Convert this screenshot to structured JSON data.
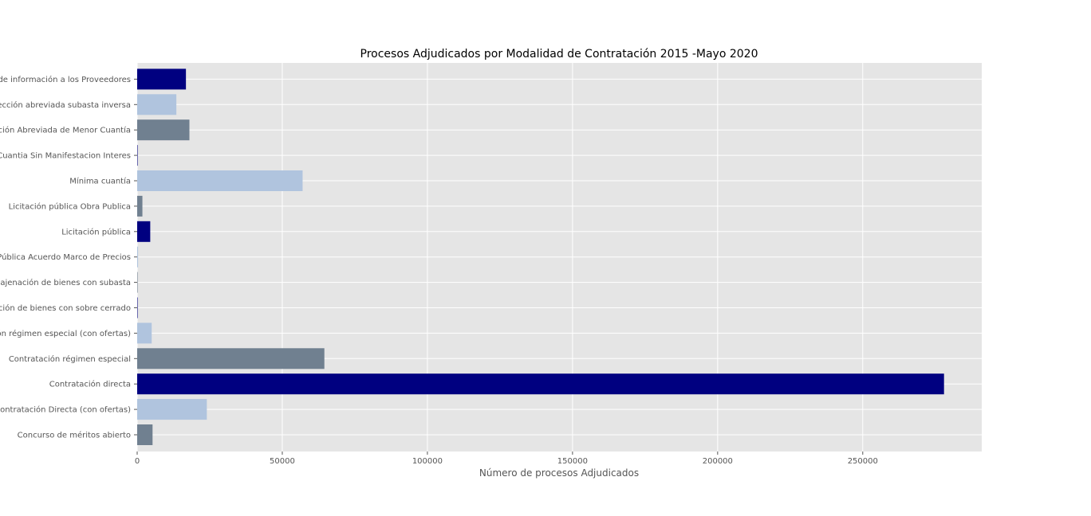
{
  "chart_data": {
    "type": "bar",
    "orientation": "horizontal",
    "title": "Procesos Adjudicados por Modalidad de Contratación 2015 -Mayo 2020",
    "xlabel": "Número de procesos Adjudicados",
    "ylabel": "",
    "xlim": [
      0,
      291000
    ],
    "x_ticks": [
      0,
      50000,
      100000,
      150000,
      200000,
      250000
    ],
    "grid": true,
    "background": "#e5e5e5",
    "categories": [
      "Concurso de méritos abierto",
      "Contratación Directa (con ofertas)",
      "Contratación directa",
      "Contratación régimen especial",
      "Contratación régimen especial (con ofertas)",
      "Enajenación de bienes con sobre cerrado",
      "Enajenación de bienes con subasta",
      "Licitación Pública Acuerdo Marco de Precios",
      "Licitación pública",
      "Licitación pública Obra Publica",
      "Mínima cuantía",
      "Mínima Cuantia Sin Manifestacion Interes",
      "Selección Abreviada de Menor Cuantía",
      "Selección abreviada subasta inversa",
      "Solicitud de información a los Proveedores"
    ],
    "values": [
      5300,
      24000,
      278000,
      64500,
      5000,
      150,
      150,
      300,
      4500,
      1800,
      57000,
      150,
      18000,
      13500,
      16800
    ],
    "colors": [
      "#708090",
      "#b0c4de",
      "#000080",
      "#708090",
      "#b0c4de",
      "#000080",
      "#708090",
      "#b0c4de",
      "#000080",
      "#708090",
      "#b0c4de",
      "#000080",
      "#708090",
      "#b0c4de",
      "#000080"
    ]
  }
}
